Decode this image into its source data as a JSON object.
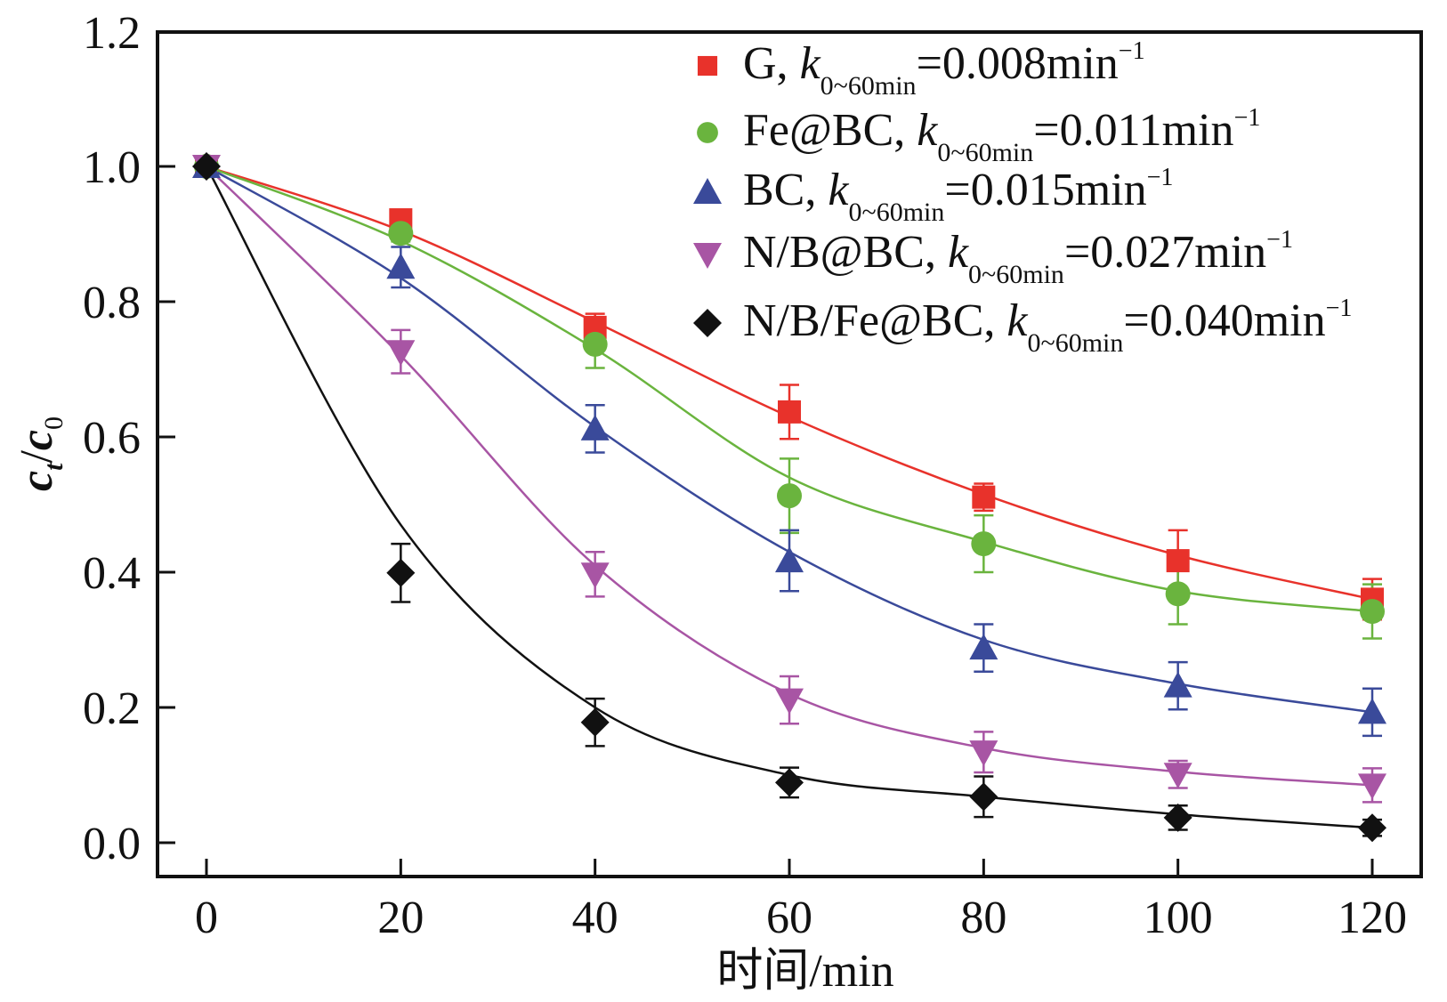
{
  "chart_data": {
    "type": "line",
    "title": "",
    "xlabel": "时间/min",
    "ylabel": {
      "main": "c",
      "sub_t": "t",
      "slash": "/",
      "main2": "c",
      "sub_0": "0"
    },
    "xlim": [
      -8,
      124
    ],
    "ylim": [
      -0.05,
      1.2
    ],
    "x_ticks": [
      0,
      20,
      40,
      60,
      80,
      100,
      120
    ],
    "x_tick_labels": [
      "0",
      "20",
      "40",
      "60",
      "80",
      "100",
      "120"
    ],
    "y_ticks": [
      0.0,
      0.2,
      0.4,
      0.6,
      0.8,
      1.0,
      1.2
    ],
    "y_tick_labels": [
      "0.0",
      "0.2",
      "0.4",
      "0.6",
      "0.8",
      "1.0",
      "1.2"
    ],
    "grid": false,
    "legend_position": "top-right",
    "x": [
      0,
      20,
      40,
      60,
      80,
      100,
      120
    ],
    "series": [
      {
        "name": "G",
        "k_label": "k",
        "k_sub": "0~60min",
        "k_value": "=0.008min",
        "k_sup": "−1",
        "color": "#e8322b",
        "marker": "square",
        "values": [
          1.0,
          0.921,
          0.762,
          0.637,
          0.511,
          0.417,
          0.36
        ],
        "errors": [
          0.0,
          0.012,
          0.02,
          0.04,
          0.02,
          0.045,
          0.03
        ],
        "fit": [
          1.0,
          0.905,
          0.77,
          0.63,
          0.515,
          0.425,
          0.36
        ]
      },
      {
        "name": "Fe@BC",
        "k_label": "k",
        "k_sub": "0~60min",
        "k_value": "=0.011min",
        "k_sup": "−1",
        "color": "#6ab43e",
        "marker": "circle",
        "values": [
          1.0,
          0.901,
          0.737,
          0.513,
          0.442,
          0.368,
          0.342
        ],
        "errors": [
          0.0,
          0.012,
          0.035,
          0.055,
          0.042,
          0.045,
          0.04
        ],
        "fit": [
          1.0,
          0.89,
          0.73,
          0.54,
          0.445,
          0.372,
          0.342
        ]
      },
      {
        "name": "BC",
        "k_label": "k",
        "k_sub": "0~60min",
        "k_value": "=0.015min",
        "k_sup": "−1",
        "color": "#3a4a9a",
        "marker": "triangle-up",
        "values": [
          1.0,
          0.851,
          0.612,
          0.417,
          0.288,
          0.232,
          0.193
        ],
        "errors": [
          0.0,
          0.03,
          0.035,
          0.045,
          0.035,
          0.035,
          0.035
        ],
        "fit": [
          1.0,
          0.835,
          0.615,
          0.43,
          0.3,
          0.235,
          0.193
        ]
      },
      {
        "name": "N/B@BC",
        "k_label": "k",
        "k_sub": "0~60min",
        "k_value": "=0.027min",
        "k_sup": "−1",
        "color": "#a855a4",
        "marker": "triangle-down",
        "values": [
          1.0,
          0.726,
          0.397,
          0.211,
          0.134,
          0.101,
          0.085
        ],
        "errors": [
          0.0,
          0.032,
          0.033,
          0.035,
          0.03,
          0.02,
          0.025
        ],
        "fit": [
          1.0,
          0.72,
          0.41,
          0.22,
          0.14,
          0.105,
          0.085
        ]
      },
      {
        "name": "N/B/Fe@BC",
        "k_label": "k",
        "k_sub": "0~60min",
        "k_value": "=0.040min",
        "k_sup": "−1",
        "color": "#111111",
        "marker": "diamond",
        "values": [
          1.0,
          0.399,
          0.178,
          0.089,
          0.068,
          0.037,
          0.022
        ],
        "errors": [
          0.0,
          0.043,
          0.035,
          0.022,
          0.03,
          0.018,
          0.012
        ],
        "fit": [
          1.0,
          0.47,
          0.2,
          0.1,
          0.068,
          0.042,
          0.022
        ]
      }
    ]
  }
}
